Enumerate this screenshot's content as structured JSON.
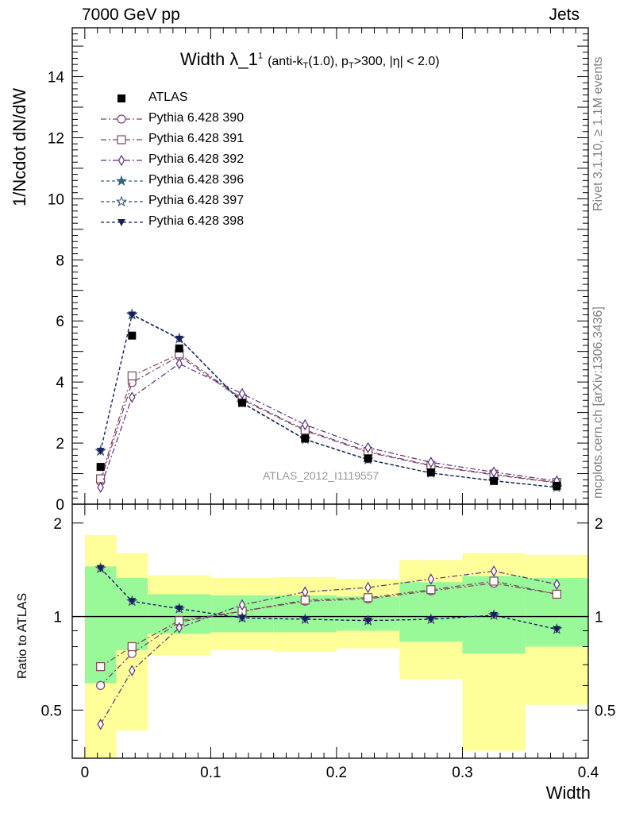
{
  "header": {
    "left_text": "7000 GeV pp",
    "right_text": "Jets"
  },
  "title": {
    "main": "Width λ_1",
    "main_sup": "1",
    "sub_a": "(anti-k",
    "sub_a_sub": "T",
    "sub_b": "(1.0), p",
    "sub_b_sub": "T",
    "sub_c": ">300, |η| < 2.0)"
  },
  "side_labels": {
    "rivet": "Rivet 3.1.10, ≥ 1.1M events",
    "mcplots": "mcplots.cern.ch [arXiv:1306.3436]"
  },
  "watermark": "ATLAS_2012_I1119557",
  "colors": {
    "data": "#000000",
    "p390": "#7e3f74",
    "p391": "#7a4a55",
    "p392": "#5a2d7a",
    "p396": "#366478",
    "p397": "#2e4d72",
    "p398": "#1a1f5a",
    "band_green": "#99f999",
    "band_yellow": "#ffff99"
  },
  "chart_data": [
    {
      "type": "line",
      "xlabel": "",
      "ylabel": "1/Ncdot dN/dW",
      "xlim": [
        -0.01,
        0.4
      ],
      "ylim": [
        0,
        15.6
      ],
      "yticks": [
        0,
        2,
        4,
        6,
        8,
        10,
        12,
        14
      ],
      "x": [
        0.0125,
        0.0375,
        0.075,
        0.125,
        0.175,
        0.225,
        0.275,
        0.325,
        0.375
      ],
      "series": [
        {
          "name": "ATLAS",
          "marker": "square-filled",
          "values": [
            1.22,
            5.52,
            5.1,
            3.32,
            2.15,
            1.5,
            1.04,
            0.76,
            0.6
          ]
        },
        {
          "name": "Pythia 6.428 390",
          "marker": "circle-open",
          "values": [
            0.74,
            3.98,
            4.85,
            3.42,
            2.4,
            1.7,
            1.25,
            0.96,
            0.7
          ]
        },
        {
          "name": "Pythia 6.428 391",
          "marker": "square-open",
          "values": [
            0.83,
            4.2,
            4.92,
            3.45,
            2.43,
            1.73,
            1.27,
            0.98,
            0.71
          ]
        },
        {
          "name": "Pythia 6.428 392",
          "marker": "diamond-open",
          "values": [
            0.55,
            3.5,
            4.6,
            3.62,
            2.6,
            1.85,
            1.37,
            1.05,
            0.76
          ]
        },
        {
          "name": "Pythia 6.428 396",
          "marker": "star-filled",
          "values": [
            1.74,
            6.2,
            5.42,
            3.32,
            2.12,
            1.46,
            1.02,
            0.77,
            0.55
          ]
        },
        {
          "name": "Pythia 6.428 397",
          "marker": "star-open",
          "values": [
            1.74,
            6.22,
            5.43,
            3.33,
            2.13,
            1.46,
            1.02,
            0.77,
            0.55
          ]
        },
        {
          "name": "Pythia 6.428 398",
          "marker": "triangle-down-filled",
          "values": [
            1.74,
            6.2,
            5.41,
            3.31,
            2.12,
            1.45,
            1.02,
            0.76,
            0.55
          ]
        }
      ]
    },
    {
      "type": "line",
      "xlabel": "Width",
      "ylabel": "Ratio to ATLAS",
      "xlim": [
        -0.01,
        0.4
      ],
      "ylim": [
        0.35,
        2.3
      ],
      "yscale": "log",
      "yticks": [
        0.5,
        1,
        2
      ],
      "xticks": [
        0,
        0.1,
        0.2,
        0.3,
        0.4
      ],
      "x": [
        0.0125,
        0.0375,
        0.075,
        0.125,
        0.175,
        0.225,
        0.275,
        0.325,
        0.375
      ],
      "bins": [
        [
          0,
          0.025
        ],
        [
          0.025,
          0.05
        ],
        [
          0.05,
          0.1
        ],
        [
          0.1,
          0.15
        ],
        [
          0.15,
          0.2
        ],
        [
          0.2,
          0.25
        ],
        [
          0.25,
          0.3
        ],
        [
          0.3,
          0.35
        ],
        [
          0.35,
          0.4
        ]
      ],
      "band_green": [
        [
          0.61,
          1.45
        ],
        [
          0.78,
          1.33
        ],
        [
          0.88,
          1.18
        ],
        [
          0.89,
          1.17
        ],
        [
          0.89,
          1.17
        ],
        [
          0.9,
          1.16
        ],
        [
          0.83,
          1.29
        ],
        [
          0.76,
          1.35
        ],
        [
          0.8,
          1.33
        ]
      ],
      "band_yellow": [
        [
          0.33,
          1.83
        ],
        [
          0.43,
          1.6
        ],
        [
          0.75,
          1.36
        ],
        [
          0.78,
          1.33
        ],
        [
          0.77,
          1.34
        ],
        [
          0.79,
          1.32
        ],
        [
          0.63,
          1.52
        ],
        [
          0.37,
          1.6
        ],
        [
          0.52,
          1.58
        ]
      ],
      "reference_line": 1,
      "series": [
        {
          "name": "Pythia 6.428 390",
          "values": [
            0.6,
            0.76,
            0.96,
            1.04,
            1.12,
            1.14,
            1.21,
            1.28,
            1.18
          ]
        },
        {
          "name": "Pythia 6.428 391",
          "values": [
            0.69,
            0.8,
            0.97,
            1.04,
            1.13,
            1.15,
            1.22,
            1.3,
            1.18
          ]
        },
        {
          "name": "Pythia 6.428 392",
          "values": [
            0.45,
            0.67,
            0.92,
            1.09,
            1.2,
            1.24,
            1.32,
            1.4,
            1.27
          ]
        },
        {
          "name": "Pythia 6.428 396",
          "values": [
            1.43,
            1.12,
            1.06,
            0.99,
            0.98,
            0.97,
            0.98,
            1.01,
            0.91
          ]
        },
        {
          "name": "Pythia 6.428 397",
          "values": [
            1.43,
            1.12,
            1.06,
            0.99,
            0.98,
            0.97,
            0.98,
            1.01,
            0.91
          ]
        },
        {
          "name": "Pythia 6.428 398",
          "values": [
            1.43,
            1.12,
            1.06,
            0.99,
            0.98,
            0.97,
            0.98,
            1.01,
            0.91
          ]
        }
      ]
    }
  ]
}
